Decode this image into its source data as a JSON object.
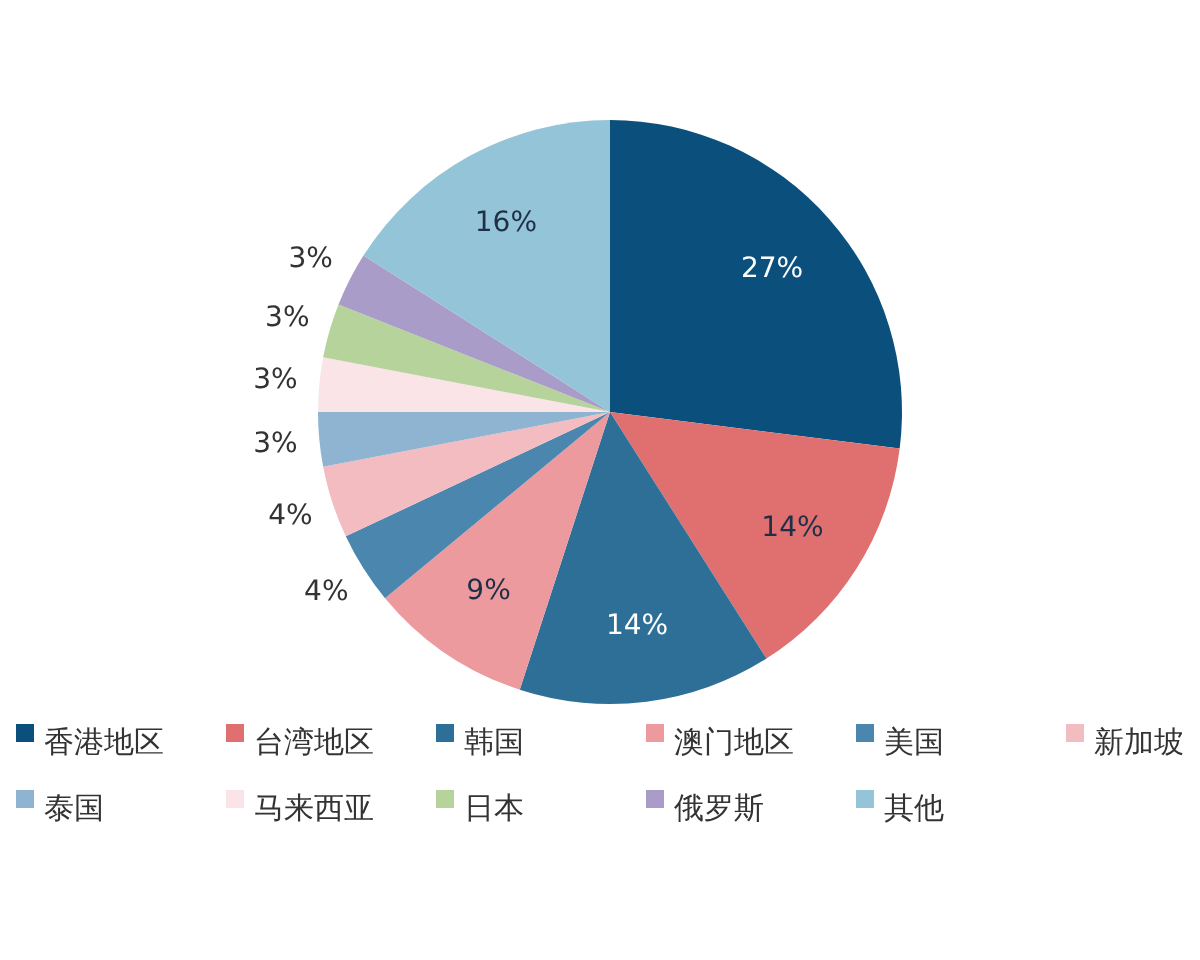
{
  "chart_data": {
    "type": "pie",
    "categories": [
      "香港地区",
      "台湾地区",
      "韩国",
      "澳门地区",
      "美国",
      "新加坡",
      "泰国",
      "马来西亚",
      "日本",
      "俄罗斯",
      "其他"
    ],
    "values": [
      27,
      14,
      14,
      9,
      4,
      4,
      3,
      3,
      3,
      3,
      16
    ],
    "colors": [
      "#0b4f7c",
      "#e07070",
      "#2e6f98",
      "#ec9a9e",
      "#4a86ad",
      "#f2bcc0",
      "#8eb4d2",
      "#fbe4e8",
      "#b5d39a",
      "#aa9cc8",
      "#94c4d8"
    ],
    "value_labels": [
      "27%",
      "14%",
      "14%",
      "9%",
      "4%",
      "4%",
      "3%",
      "3%",
      "3%",
      "3%",
      "16%"
    ],
    "legend": "bottom"
  }
}
